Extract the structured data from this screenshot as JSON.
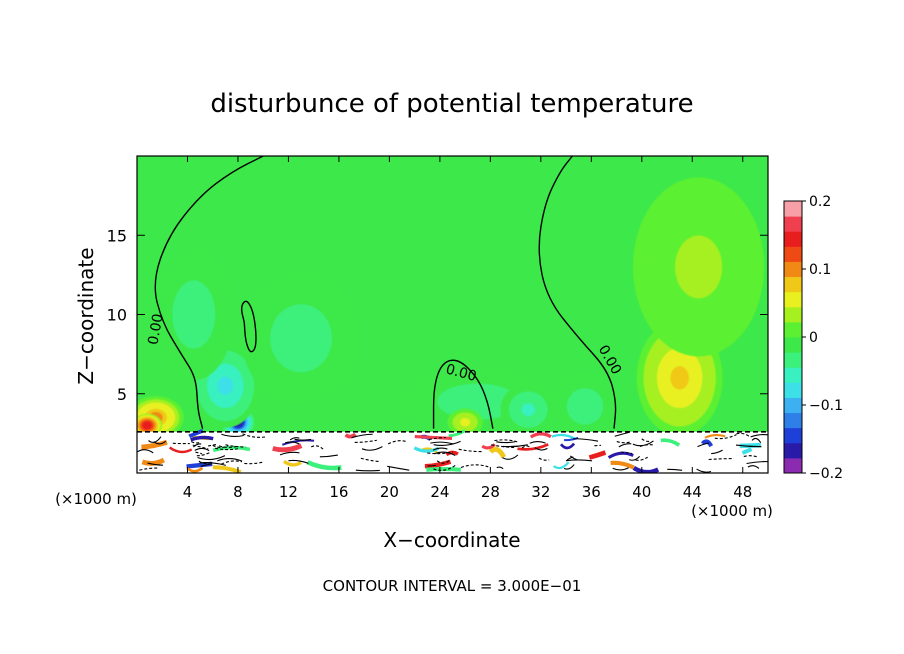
{
  "chart_data": {
    "type": "heatmap",
    "title": "disturbunce of potential temperature",
    "xlabel": "X−coordinate",
    "ylabel": "Z−coordinate",
    "x_unit_left": "(×1000 m)",
    "x_unit_right": "(×1000 m)",
    "xlim": [
      0,
      50
    ],
    "ylim": [
      0,
      20
    ],
    "xticks": [
      4,
      8,
      12,
      16,
      20,
      24,
      28,
      32,
      36,
      40,
      44,
      48
    ],
    "xtick_labels": [
      "4",
      "8",
      "12",
      "16",
      "20",
      "24",
      "28",
      "32",
      "36",
      "40",
      "44",
      "48"
    ],
    "yticks": [
      5,
      10,
      15
    ],
    "ytick_labels": [
      "5",
      "10",
      "15"
    ],
    "colorbar": {
      "min": -0.2,
      "max": 0.2,
      "ticks": [
        0.2,
        0.1,
        0,
        -0.1,
        -0.2
      ],
      "tick_labels": [
        "0.2",
        "0.1",
        "0",
        "−0.1",
        "−0.2"
      ],
      "colors": [
        "#8b2bb0",
        "#2a1aa8",
        "#1f3fd9",
        "#2f7fe8",
        "#3cb0f0",
        "#3ee0e8",
        "#38f0c0",
        "#3cf07c",
        "#3de84a",
        "#5cf032",
        "#a6f020",
        "#e8f020",
        "#f0c818",
        "#f08a14",
        "#f04a14",
        "#e81e1e",
        "#f04050",
        "#f8a0a8"
      ]
    },
    "background_value": 0.0,
    "blobs": [
      {
        "x": 8.0,
        "z": 3.2,
        "value": -0.19,
        "sx": 1.1,
        "sz": 0.8
      },
      {
        "x": 7.0,
        "z": 5.5,
        "value": -0.09,
        "sx": 2.5,
        "sz": 2.5
      },
      {
        "x": 13.0,
        "z": 8.5,
        "value": -0.05,
        "sx": 4.5,
        "sz": 4.0
      },
      {
        "x": 4.5,
        "z": 10.0,
        "value": -0.04,
        "sx": 3.0,
        "sz": 4.0
      },
      {
        "x": 27.0,
        "z": 4.5,
        "value": -0.04,
        "sx": 6.0,
        "sz": 2.0
      },
      {
        "x": 35.5,
        "z": 4.2,
        "value": -0.05,
        "sx": 2.5,
        "sz": 2.0
      },
      {
        "x": 31.0,
        "z": 4.0,
        "value": -0.06,
        "sx": 2.0,
        "sz": 1.5
      },
      {
        "x": 1.5,
        "z": 3.5,
        "value": 0.11,
        "sx": 2.0,
        "sz": 1.2
      },
      {
        "x": 0.8,
        "z": 3.0,
        "value": 0.16,
        "sx": 1.0,
        "sz": 0.6
      },
      {
        "x": 43.0,
        "z": 6.0,
        "value": 0.08,
        "sx": 3.2,
        "sz": 3.5
      },
      {
        "x": 44.5,
        "z": 13.0,
        "value": 0.035,
        "sx": 5.0,
        "sz": 5.5
      },
      {
        "x": 26.0,
        "z": 3.2,
        "value": 0.06,
        "sx": 1.2,
        "sz": 0.7
      }
    ],
    "contour_interval_label": "CONTOUR INTERVAL = 3.000E−01",
    "contour_labels": [
      "0.00",
      "0.00",
      "0.00"
    ],
    "zero_contours": [
      {
        "points": [
          [
            10,
            20
          ],
          [
            7.5,
            19.0
          ],
          [
            5.0,
            17.5
          ],
          [
            2.5,
            15.0
          ],
          [
            1.2,
            12.0
          ],
          [
            2.0,
            9.5
          ],
          [
            3.5,
            7.5
          ],
          [
            4.7,
            6.0
          ],
          [
            4.8,
            4.0
          ],
          [
            5.2,
            2.8
          ]
        ]
      },
      {
        "points": [
          [
            34.5,
            20
          ],
          [
            33.5,
            19.0
          ],
          [
            32.3,
            17.0
          ],
          [
            31.7,
            14.0
          ],
          [
            32.5,
            11.0
          ],
          [
            35.0,
            8.5
          ],
          [
            37.3,
            6.5
          ],
          [
            38.0,
            4.5
          ],
          [
            37.8,
            2.8
          ]
        ]
      },
      {
        "points": [
          [
            23.5,
            2.8
          ],
          [
            23.5,
            5.5
          ],
          [
            24.2,
            7.0
          ],
          [
            25.5,
            7.2
          ],
          [
            27.0,
            6.0
          ],
          [
            27.8,
            4.5
          ],
          [
            28.2,
            2.8
          ]
        ]
      },
      {
        "points": [
          [
            8.5,
            9.5
          ],
          [
            8.2,
            10.5
          ],
          [
            8.7,
            11.0
          ],
          [
            9.3,
            10.0
          ],
          [
            9.5,
            8.0
          ],
          [
            9.0,
            7.5
          ],
          [
            8.6,
            8.3
          ],
          [
            8.5,
            9.5
          ]
        ]
      }
    ],
    "surface_layer_top_z": 2.6
  }
}
